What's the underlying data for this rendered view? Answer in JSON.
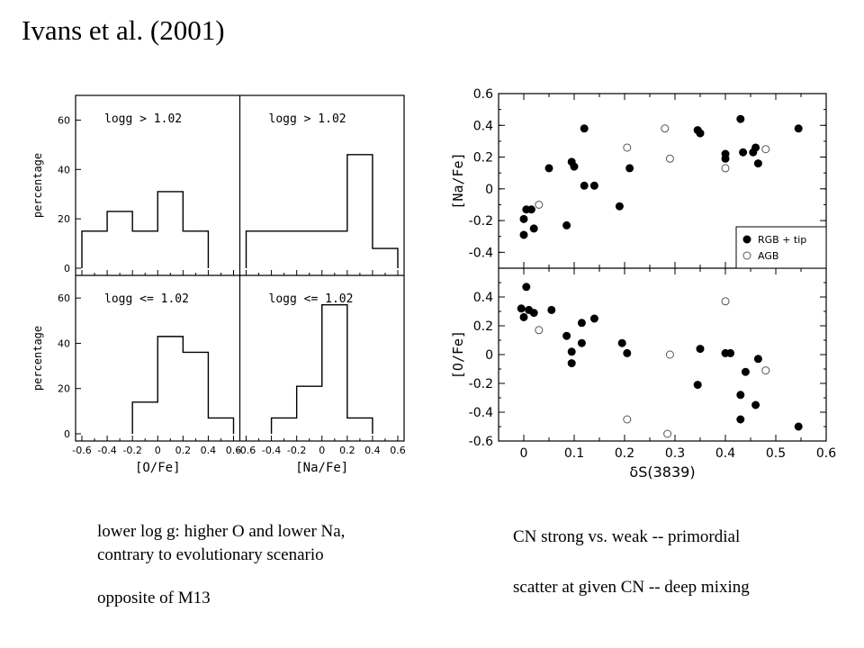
{
  "slide": {
    "title": "Ivans et al. (2001)",
    "caption_left": [
      "lower log g: higher O and lower Na,",
      "contrary to evolutionary scenario",
      "",
      "opposite of M13"
    ],
    "caption_right": [
      "CN strong vs. weak -- primordial",
      "",
      "scatter at given CN -- deep mixing"
    ]
  },
  "chart_data": [
    {
      "type": "histogram",
      "panel": "top-left",
      "label": "logg > 1.02",
      "ylabel": "percentage",
      "xlabel": "[O/Fe]",
      "xlim": [
        -0.6,
        0.6
      ],
      "ylim": [
        0,
        70
      ],
      "yticks": [
        0,
        20,
        40,
        60
      ],
      "bins": [
        -0.6,
        -0.4,
        -0.2,
        0.0,
        0.2,
        0.4
      ],
      "values": [
        15,
        23,
        15,
        31,
        15
      ]
    },
    {
      "type": "histogram",
      "panel": "top-right",
      "label": "logg > 1.02",
      "xlabel": "[Na/Fe]",
      "xlim": [
        -0.6,
        0.6
      ],
      "ylim": [
        0,
        70
      ],
      "bins": [
        -0.6,
        -0.4,
        -0.2,
        0.0,
        0.2,
        0.4,
        0.6
      ],
      "values": [
        15,
        15,
        15,
        15,
        46,
        8
      ]
    },
    {
      "type": "histogram",
      "panel": "bottom-left",
      "label": "logg <= 1.02",
      "ylabel": "percentage",
      "xlabel": "[O/Fe]",
      "xlim": [
        -0.6,
        0.6
      ],
      "ylim": [
        0,
        70
      ],
      "yticks": [
        0,
        20,
        40,
        60
      ],
      "xticks": [
        "-0.6",
        "-0.4",
        "-0.2",
        "0",
        "0.2",
        "0.4",
        "0.6"
      ],
      "bins": [
        -0.2,
        0.0,
        0.2,
        0.4,
        0.6
      ],
      "values": [
        14,
        43,
        36,
        7
      ]
    },
    {
      "type": "histogram",
      "panel": "bottom-right",
      "label": "logg <= 1.02",
      "xlabel": "[Na/Fe]",
      "xlim": [
        -0.6,
        0.6
      ],
      "ylim": [
        0,
        70
      ],
      "xticks": [
        "-0.6",
        "-0.4",
        "-0.2",
        "0",
        "0.2",
        "0.4",
        "0.6"
      ],
      "bins": [
        -0.4,
        -0.2,
        0.0,
        0.2,
        0.4
      ],
      "values": [
        7,
        21,
        57,
        7
      ]
    },
    {
      "type": "scatter",
      "panel": "top",
      "ylabel": "[Na/Fe]",
      "xlim": [
        -0.05,
        0.6
      ],
      "ylim": [
        -0.5,
        0.6
      ],
      "yticks": [
        "-0.4",
        "-0.2",
        "0",
        "0.2",
        "0.4",
        "0.6"
      ],
      "legend_position": "bottom-right",
      "series": [
        {
          "name": "RGB + tip",
          "marker": "filled",
          "points": [
            [
              0.0,
              -0.29
            ],
            [
              0.0,
              -0.19
            ],
            [
              0.005,
              -0.13
            ],
            [
              0.015,
              -0.13
            ],
            [
              0.02,
              -0.25
            ],
            [
              0.05,
              0.13
            ],
            [
              0.085,
              -0.23
            ],
            [
              0.095,
              0.17
            ],
            [
              0.1,
              0.14
            ],
            [
              0.12,
              0.38
            ],
            [
              0.12,
              0.02
            ],
            [
              0.14,
              0.02
            ],
            [
              0.19,
              -0.11
            ],
            [
              0.21,
              0.13
            ],
            [
              0.345,
              0.37
            ],
            [
              0.35,
              0.35
            ],
            [
              0.4,
              0.22
            ],
            [
              0.4,
              0.19
            ],
            [
              0.43,
              0.44
            ],
            [
              0.435,
              0.23
            ],
            [
              0.455,
              0.23
            ],
            [
              0.46,
              0.26
            ],
            [
              0.465,
              0.16
            ],
            [
              0.545,
              0.38
            ]
          ]
        },
        {
          "name": "AGB",
          "marker": "open",
          "points": [
            [
              0.03,
              -0.1
            ],
            [
              0.205,
              0.26
            ],
            [
              0.28,
              0.38
            ],
            [
              0.29,
              0.19
            ],
            [
              0.4,
              0.13
            ],
            [
              0.48,
              0.25
            ]
          ]
        }
      ]
    },
    {
      "type": "scatter",
      "panel": "bottom",
      "ylabel": "[O/Fe]",
      "xlabel": "δS(3839)",
      "xlim": [
        -0.05,
        0.6
      ],
      "ylim": [
        -0.6,
        0.6
      ],
      "yticks": [
        "-0.6",
        "-0.4",
        "-0.2",
        "0",
        "0.2",
        "0.4"
      ],
      "xticks": [
        "0",
        "0.1",
        "0.2",
        "0.3",
        "0.4",
        "0.5",
        "0.6"
      ],
      "series": [
        {
          "name": "RGB + tip",
          "marker": "filled",
          "points": [
            [
              -0.005,
              0.32
            ],
            [
              0.0,
              0.26
            ],
            [
              0.005,
              0.47
            ],
            [
              0.01,
              0.31
            ],
            [
              0.02,
              0.29
            ],
            [
              0.055,
              0.31
            ],
            [
              0.085,
              0.13
            ],
            [
              0.095,
              0.02
            ],
            [
              0.095,
              -0.06
            ],
            [
              0.115,
              0.08
            ],
            [
              0.115,
              0.22
            ],
            [
              0.14,
              0.25
            ],
            [
              0.195,
              0.08
            ],
            [
              0.205,
              0.01
            ],
            [
              0.345,
              -0.21
            ],
            [
              0.35,
              0.04
            ],
            [
              0.4,
              0.01
            ],
            [
              0.41,
              0.01
            ],
            [
              0.43,
              -0.28
            ],
            [
              0.43,
              -0.45
            ],
            [
              0.44,
              -0.12
            ],
            [
              0.46,
              -0.35
            ],
            [
              0.465,
              -0.03
            ],
            [
              0.545,
              -0.5
            ]
          ]
        },
        {
          "name": "AGB",
          "marker": "open",
          "points": [
            [
              0.03,
              0.17
            ],
            [
              0.205,
              -0.45
            ],
            [
              0.285,
              -0.55
            ],
            [
              0.29,
              0.0
            ],
            [
              0.4,
              0.37
            ],
            [
              0.48,
              -0.11
            ]
          ]
        }
      ]
    }
  ]
}
